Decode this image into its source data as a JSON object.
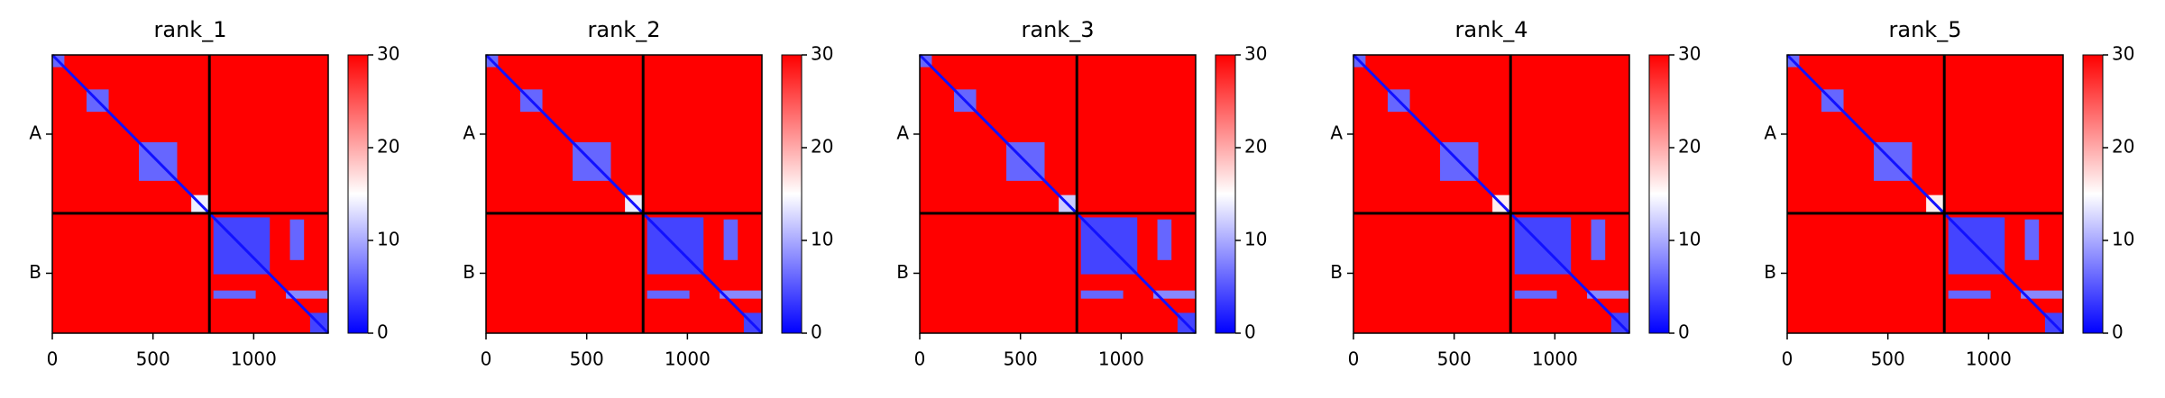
{
  "chart_data": [
    {
      "type": "heatmap",
      "title": "rank_1",
      "xlim": [
        0,
        1370
      ],
      "ylim": [
        1370,
        0
      ],
      "xticks": [
        0,
        500,
        1000
      ],
      "yticks": [
        {
          "value": 390,
          "label": "A"
        },
        {
          "value": 1075,
          "label": "B"
        }
      ],
      "boundaries": [
        780
      ],
      "clim": [
        0,
        30
      ],
      "cticks": [
        0,
        10,
        20,
        30
      ],
      "colors": [
        "#0000ff",
        "#ffffff",
        "#ff0000"
      ],
      "background_value": 30,
      "diagonal_value": 1,
      "blocks": [
        {
          "x": [
            0,
            60
          ],
          "y": [
            0,
            60
          ],
          "value": 6
        },
        {
          "x": [
            170,
            280
          ],
          "y": [
            170,
            280
          ],
          "value": 6
        },
        {
          "x": [
            430,
            620
          ],
          "y": [
            430,
            620
          ],
          "value": 6
        },
        {
          "x": [
            690,
            780
          ],
          "y": [
            690,
            780
          ],
          "value": 14
        },
        {
          "x": [
            800,
            1080
          ],
          "y": [
            800,
            1080
          ],
          "value": 4
        },
        {
          "x": [
            1180,
            1250
          ],
          "y": [
            810,
            1010
          ],
          "value": 6
        },
        {
          "x": [
            800,
            1010
          ],
          "y": [
            1160,
            1200
          ],
          "value": 6
        },
        {
          "x": [
            1160,
            1370
          ],
          "y": [
            1160,
            1200
          ],
          "value": 8
        },
        {
          "x": [
            1280,
            1370
          ],
          "y": [
            1270,
            1370
          ],
          "value": 4
        }
      ]
    },
    {
      "type": "heatmap",
      "title": "rank_2",
      "xlim": [
        0,
        1370
      ],
      "ylim": [
        1370,
        0
      ],
      "xticks": [
        0,
        500,
        1000
      ],
      "yticks": [
        {
          "value": 390,
          "label": "A"
        },
        {
          "value": 1075,
          "label": "B"
        }
      ],
      "boundaries": [
        780
      ],
      "clim": [
        0,
        30
      ],
      "cticks": [
        0,
        10,
        20,
        30
      ],
      "colors": [
        "#0000ff",
        "#ffffff",
        "#ff0000"
      ],
      "background_value": 30,
      "diagonal_value": 1,
      "blocks": [
        {
          "x": [
            0,
            60
          ],
          "y": [
            0,
            60
          ],
          "value": 6
        },
        {
          "x": [
            170,
            280
          ],
          "y": [
            170,
            280
          ],
          "value": 6
        },
        {
          "x": [
            430,
            620
          ],
          "y": [
            430,
            620
          ],
          "value": 6
        },
        {
          "x": [
            690,
            780
          ],
          "y": [
            690,
            780
          ],
          "value": 14
        },
        {
          "x": [
            800,
            1080
          ],
          "y": [
            800,
            1080
          ],
          "value": 4
        },
        {
          "x": [
            1180,
            1250
          ],
          "y": [
            810,
            1010
          ],
          "value": 6
        },
        {
          "x": [
            800,
            1010
          ],
          "y": [
            1160,
            1200
          ],
          "value": 6
        },
        {
          "x": [
            1160,
            1370
          ],
          "y": [
            1160,
            1200
          ],
          "value": 8
        },
        {
          "x": [
            1280,
            1370
          ],
          "y": [
            1270,
            1370
          ],
          "value": 4
        }
      ]
    },
    {
      "type": "heatmap",
      "title": "rank_3",
      "xlim": [
        0,
        1370
      ],
      "ylim": [
        1370,
        0
      ],
      "xticks": [
        0,
        500,
        1000
      ],
      "yticks": [
        {
          "value": 390,
          "label": "A"
        },
        {
          "value": 1075,
          "label": "B"
        }
      ],
      "boundaries": [
        780
      ],
      "clim": [
        0,
        30
      ],
      "cticks": [
        0,
        10,
        20,
        30
      ],
      "colors": [
        "#0000ff",
        "#ffffff",
        "#ff0000"
      ],
      "background_value": 30,
      "diagonal_value": 1,
      "blocks": [
        {
          "x": [
            0,
            60
          ],
          "y": [
            0,
            60
          ],
          "value": 6
        },
        {
          "x": [
            170,
            280
          ],
          "y": [
            170,
            280
          ],
          "value": 6
        },
        {
          "x": [
            430,
            620
          ],
          "y": [
            430,
            620
          ],
          "value": 6
        },
        {
          "x": [
            690,
            780
          ],
          "y": [
            690,
            780
          ],
          "value": 12
        },
        {
          "x": [
            800,
            1080
          ],
          "y": [
            800,
            1080
          ],
          "value": 4
        },
        {
          "x": [
            1180,
            1250
          ],
          "y": [
            810,
            1010
          ],
          "value": 6
        },
        {
          "x": [
            800,
            1010
          ],
          "y": [
            1160,
            1200
          ],
          "value": 6
        },
        {
          "x": [
            1160,
            1370
          ],
          "y": [
            1160,
            1200
          ],
          "value": 8
        },
        {
          "x": [
            1280,
            1370
          ],
          "y": [
            1270,
            1370
          ],
          "value": 4
        }
      ]
    },
    {
      "type": "heatmap",
      "title": "rank_4",
      "xlim": [
        0,
        1370
      ],
      "ylim": [
        1370,
        0
      ],
      "xticks": [
        0,
        500,
        1000
      ],
      "yticks": [
        {
          "value": 390,
          "label": "A"
        },
        {
          "value": 1075,
          "label": "B"
        }
      ],
      "boundaries": [
        780
      ],
      "clim": [
        0,
        30
      ],
      "cticks": [
        0,
        10,
        20,
        30
      ],
      "colors": [
        "#0000ff",
        "#ffffff",
        "#ff0000"
      ],
      "background_value": 30,
      "diagonal_value": 1,
      "blocks": [
        {
          "x": [
            0,
            60
          ],
          "y": [
            0,
            60
          ],
          "value": 6
        },
        {
          "x": [
            170,
            280
          ],
          "y": [
            170,
            280
          ],
          "value": 6
        },
        {
          "x": [
            430,
            620
          ],
          "y": [
            430,
            620
          ],
          "value": 6
        },
        {
          "x": [
            690,
            780
          ],
          "y": [
            690,
            780
          ],
          "value": 16
        },
        {
          "x": [
            800,
            1080
          ],
          "y": [
            800,
            1080
          ],
          "value": 4
        },
        {
          "x": [
            1180,
            1250
          ],
          "y": [
            810,
            1010
          ],
          "value": 6
        },
        {
          "x": [
            800,
            1010
          ],
          "y": [
            1160,
            1200
          ],
          "value": 6
        },
        {
          "x": [
            1160,
            1370
          ],
          "y": [
            1160,
            1200
          ],
          "value": 8
        },
        {
          "x": [
            1280,
            1370
          ],
          "y": [
            1270,
            1370
          ],
          "value": 4
        }
      ]
    },
    {
      "type": "heatmap",
      "title": "rank_5",
      "xlim": [
        0,
        1370
      ],
      "ylim": [
        1370,
        0
      ],
      "xticks": [
        0,
        500,
        1000
      ],
      "yticks": [
        {
          "value": 390,
          "label": "A"
        },
        {
          "value": 1075,
          "label": "B"
        }
      ],
      "boundaries": [
        780
      ],
      "clim": [
        0,
        30
      ],
      "cticks": [
        0,
        10,
        20,
        30
      ],
      "colors": [
        "#0000ff",
        "#ffffff",
        "#ff0000"
      ],
      "background_value": 30,
      "diagonal_value": 1,
      "blocks": [
        {
          "x": [
            0,
            60
          ],
          "y": [
            0,
            60
          ],
          "value": 6
        },
        {
          "x": [
            170,
            280
          ],
          "y": [
            170,
            280
          ],
          "value": 6
        },
        {
          "x": [
            430,
            620
          ],
          "y": [
            430,
            620
          ],
          "value": 6
        },
        {
          "x": [
            690,
            780
          ],
          "y": [
            690,
            780
          ],
          "value": 16
        },
        {
          "x": [
            800,
            1080
          ],
          "y": [
            800,
            1080
          ],
          "value": 4
        },
        {
          "x": [
            1180,
            1250
          ],
          "y": [
            810,
            1010
          ],
          "value": 6
        },
        {
          "x": [
            800,
            1010
          ],
          "y": [
            1160,
            1200
          ],
          "value": 6
        },
        {
          "x": [
            1160,
            1370
          ],
          "y": [
            1160,
            1200
          ],
          "value": 8
        },
        {
          "x": [
            1280,
            1370
          ],
          "y": [
            1270,
            1370
          ],
          "value": 4
        }
      ]
    }
  ]
}
